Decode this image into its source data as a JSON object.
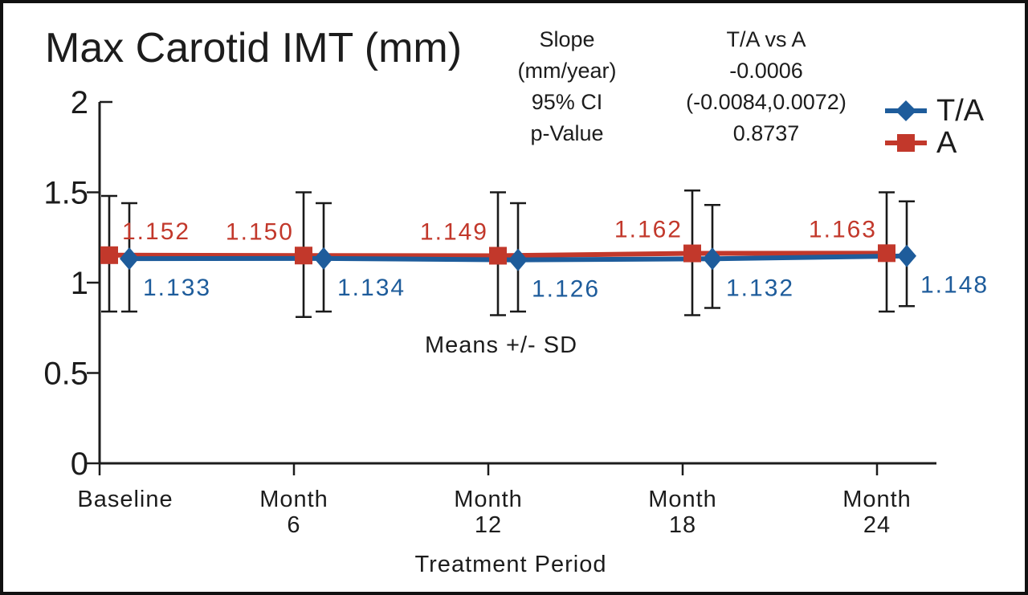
{
  "chart_data": {
    "type": "line",
    "title": "Max Carotid IMT (mm)",
    "xlabel": "Treatment Period",
    "ylabel": "",
    "ylim": [
      0,
      2
    ],
    "yticks": [
      0,
      0.5,
      1,
      1.5,
      2
    ],
    "ytick_labels": [
      "0",
      "0.5",
      "1",
      "1.5",
      "2"
    ],
    "categories": [
      "Baseline",
      "Month 6",
      "Month 12",
      "Month 18",
      "Month 24"
    ],
    "x_tick_lines": [
      [
        "Baseline"
      ],
      [
        "Month",
        "6"
      ],
      [
        "Month",
        "12"
      ],
      [
        "Month",
        "18"
      ],
      [
        "Month",
        "24"
      ]
    ],
    "annotation": "Means +/- SD",
    "grid": false,
    "legend_position": "top-right",
    "series": [
      {
        "name": "A",
        "color": "#c2382b",
        "marker": "square",
        "label_position": "above",
        "values": [
          1.152,
          1.15,
          1.149,
          1.162,
          1.163
        ],
        "value_labels": [
          "1.152",
          "1.150",
          "1.149",
          "1.162",
          "1.163"
        ],
        "err_high": [
          1.48,
          1.5,
          1.5,
          1.51,
          1.5
        ],
        "err_low": [
          0.84,
          0.81,
          0.82,
          0.82,
          0.84
        ]
      },
      {
        "name": "T/A",
        "color": "#1e5c9b",
        "marker": "diamond",
        "label_position": "below",
        "values": [
          1.133,
          1.134,
          1.126,
          1.132,
          1.148
        ],
        "value_labels": [
          "1.133",
          "1.134",
          "1.126",
          "1.132",
          "1.148"
        ],
        "err_high": [
          1.44,
          1.44,
          1.44,
          1.43,
          1.45
        ],
        "err_low": [
          0.84,
          0.84,
          0.84,
          0.86,
          0.87
        ]
      }
    ],
    "stats": {
      "col1": [
        "Slope",
        "(mm/year)",
        "95% CI",
        "p-Value"
      ],
      "col2": [
        "T/A vs A",
        "-0.0006",
        "(-0.0084,0.0072)",
        "0.8737"
      ]
    },
    "legend": {
      "entries": [
        "T/A",
        "A"
      ]
    },
    "error_bar_color": "#1a1a1a",
    "axis_color": "#1c1c1c"
  }
}
